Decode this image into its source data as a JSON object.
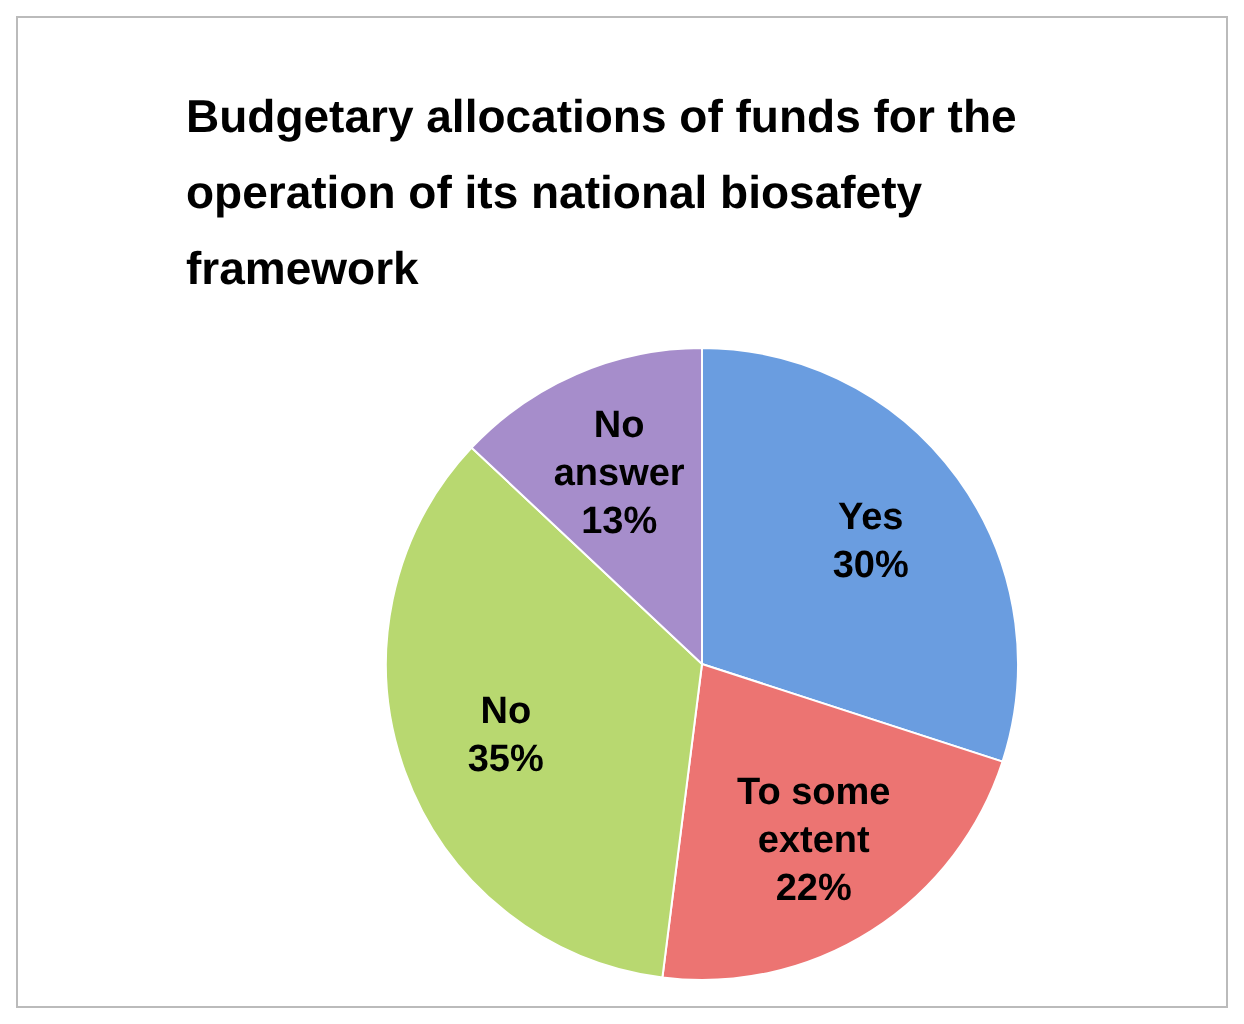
{
  "chart_data": {
    "type": "pie",
    "title": "Budgetary allocations of funds for the operation of its national biosafety framework",
    "categories": [
      "Yes",
      "To some extent",
      "No",
      "No answer"
    ],
    "values": [
      30,
      22,
      35,
      13
    ],
    "value_labels": [
      "30%",
      "22%",
      "35%",
      "13%"
    ],
    "colors": [
      "#6a9de0",
      "#ec7472",
      "#b8d870",
      "#a68dcb"
    ],
    "legend": false
  }
}
